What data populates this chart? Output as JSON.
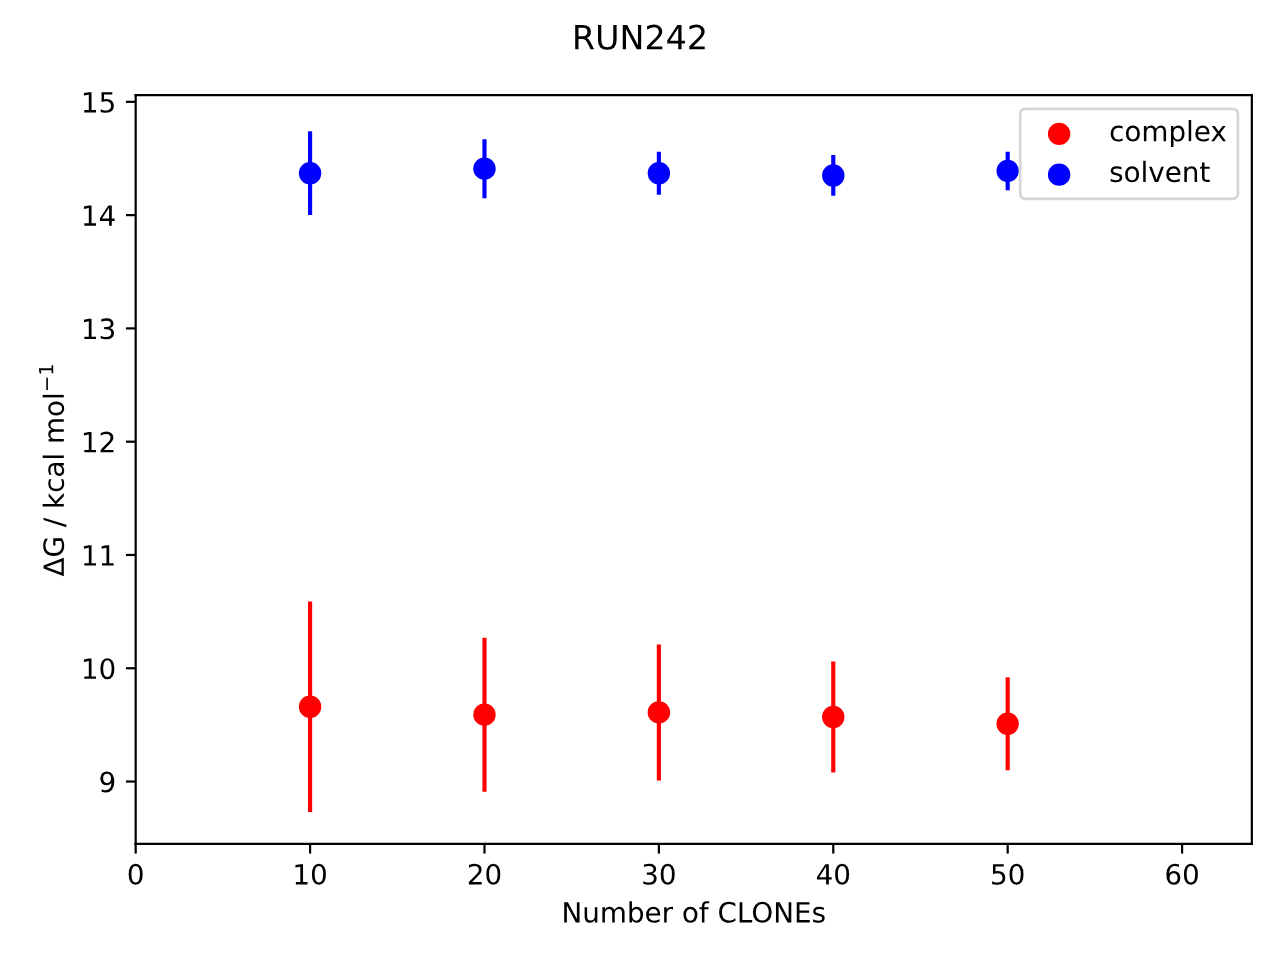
{
  "chart_data": {
    "type": "scatter",
    "title": "RUN242",
    "xlabel": "Number of CLONEs",
    "ylabel": "ΔG / kcal mol$^{−1}$",
    "x": [
      10,
      20,
      30,
      40,
      50
    ],
    "series": [
      {
        "name": "complex",
        "color": "#ff0000",
        "values": [
          9.66,
          9.59,
          9.61,
          9.57,
          9.51
        ],
        "errors": [
          0.93,
          0.68,
          0.6,
          0.49,
          0.41
        ]
      },
      {
        "name": "solvent",
        "color": "#0000ff",
        "values": [
          14.37,
          14.41,
          14.37,
          14.35,
          14.39
        ],
        "errors": [
          0.37,
          0.26,
          0.19,
          0.18,
          0.17
        ]
      }
    ],
    "xlim": [
      0,
      64
    ],
    "xticks": [
      0,
      10,
      20,
      30,
      40,
      50,
      60
    ],
    "ylim": [
      8.45,
      15.06
    ],
    "yticks": [
      9,
      10,
      11,
      12,
      13,
      14,
      15
    ],
    "legend": "top right",
    "marker": "circle",
    "grid": false
  }
}
